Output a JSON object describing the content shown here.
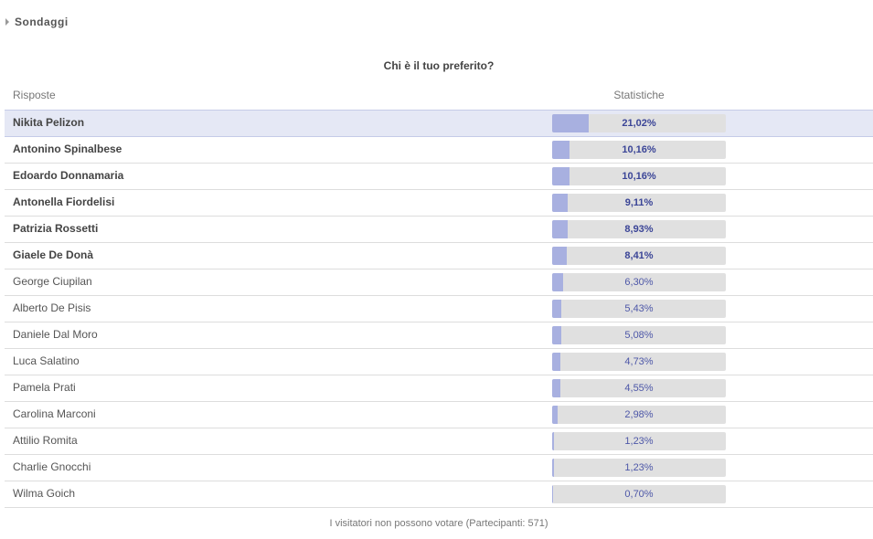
{
  "section": {
    "title": "Sondaggi",
    "icon": "caret-right-icon"
  },
  "poll": {
    "question": "Chi è il tuo preferito?",
    "columns": {
      "answers": "Risposte",
      "stats": "Statistiche"
    },
    "options": [
      {
        "name": "Nikita Pelizon",
        "percent": 21.02,
        "label": "21,02%",
        "bold": true,
        "highlight": true
      },
      {
        "name": "Antonino Spinalbese",
        "percent": 10.16,
        "label": "10,16%",
        "bold": true,
        "highlight": false
      },
      {
        "name": "Edoardo Donnamaria",
        "percent": 10.16,
        "label": "10,16%",
        "bold": true,
        "highlight": false
      },
      {
        "name": "Antonella Fiordelisi",
        "percent": 9.11,
        "label": "9,11%",
        "bold": true,
        "highlight": false
      },
      {
        "name": "Patrizia Rossetti",
        "percent": 8.93,
        "label": "8,93%",
        "bold": true,
        "highlight": false
      },
      {
        "name": "Giaele De Donà",
        "percent": 8.41,
        "label": "8,41%",
        "bold": true,
        "highlight": false
      },
      {
        "name": "George Ciupilan",
        "percent": 6.3,
        "label": "6,30%",
        "bold": false,
        "highlight": false
      },
      {
        "name": "Alberto De Pisis",
        "percent": 5.43,
        "label": "5,43%",
        "bold": false,
        "highlight": false
      },
      {
        "name": "Daniele Dal Moro",
        "percent": 5.08,
        "label": "5,08%",
        "bold": false,
        "highlight": false
      },
      {
        "name": "Luca Salatino",
        "percent": 4.73,
        "label": "4,73%",
        "bold": false,
        "highlight": false
      },
      {
        "name": "Pamela Prati",
        "percent": 4.55,
        "label": "4,55%",
        "bold": false,
        "highlight": false
      },
      {
        "name": "Carolina Marconi",
        "percent": 2.98,
        "label": "2,98%",
        "bold": false,
        "highlight": false
      },
      {
        "name": "Attilio Romita",
        "percent": 1.23,
        "label": "1,23%",
        "bold": false,
        "highlight": false
      },
      {
        "name": "Charlie Gnocchi",
        "percent": 1.23,
        "label": "1,23%",
        "bold": false,
        "highlight": false
      },
      {
        "name": "Wilma Goich",
        "percent": 0.7,
        "label": "0,70%",
        "bold": false,
        "highlight": false
      }
    ],
    "footer": "I visitatori non possono votare (Partecipanti: 571)"
  },
  "colors": {
    "bar_fill": "#a8b0e0",
    "bar_track": "#e0e0e0",
    "highlight_row": "#e5e8f5",
    "percent_text": "#3b4597"
  }
}
